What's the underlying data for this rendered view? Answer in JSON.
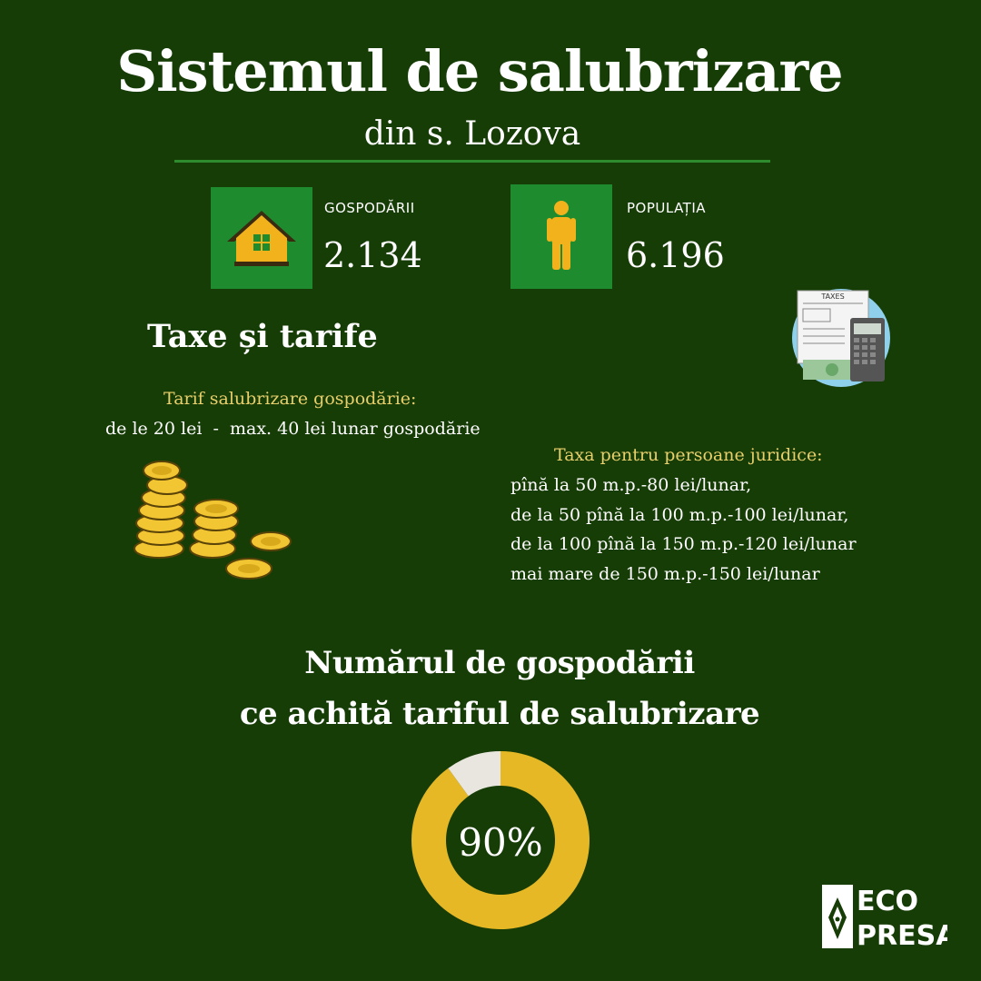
{
  "header": {
    "title": "Sistemul de salubrizare",
    "subtitle": "din s. Lozova"
  },
  "stats": {
    "households": {
      "label": "GOSPODĂRII",
      "value": "2.134",
      "icon": "house-icon"
    },
    "population": {
      "label": "POPULAȚIA",
      "value": "6.196",
      "icon": "person-icon"
    }
  },
  "taxes": {
    "title": "Taxe și tarife",
    "household_tariff_heading": "Tarif salubrizare gospodărie:",
    "household_tariff_text": "de le 20 lei  -  max. 40 lei lunar gospodărie",
    "legal_entities_heading": "Taxa pentru persoane juridice:",
    "legal_entities_lines": [
      "pînă la 50 m.p.-80 lei/lunar,",
      "de la 50 pînă la 100 m.p.-100 lei/lunar,",
      "de la 100 pînă la 150 m.p.-120 lei/lunar",
      "mai mare de 150 m.p.-150 lei/lunar"
    ]
  },
  "chart_section": {
    "title_line1": "Numărul de gospodării",
    "title_line2": "ce achită tariful de salubrizare"
  },
  "chart_data": {
    "type": "pie",
    "center_label": "90%",
    "slices": [
      {
        "value": 90,
        "color": "#e6b825"
      },
      {
        "value": 10,
        "color": "#e8e6df"
      }
    ]
  },
  "logo": {
    "line1": "ECO",
    "line2": "PRESA"
  },
  "colors": {
    "background": "#173d07",
    "accent_green": "#1e8c2e",
    "gold": "#e6b825",
    "caption_yellow": "#e8cf6a"
  }
}
